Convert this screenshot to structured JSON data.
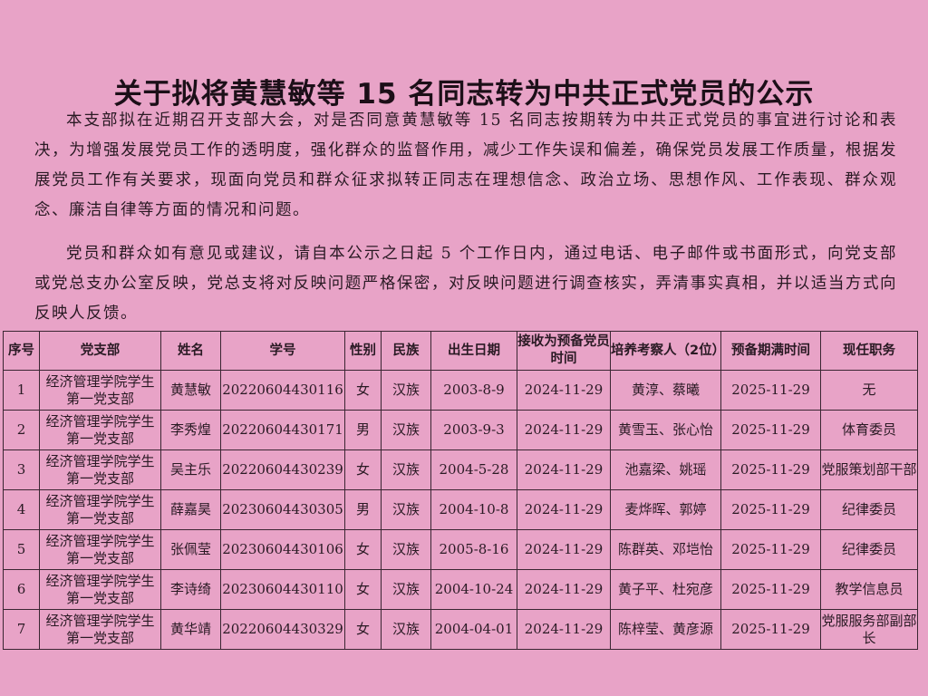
{
  "title": "关于拟将黄慧敏等 15 名同志转为中共正式党员的公示",
  "paragraphs": [
    "本支部拟在近期召开支部大会，对是否同意黄慧敏等 15 名同志按期转为中共正式党员的事宜进行讨论和表决，为增强发展党员工作的透明度，强化群众的监督作用，减少工作失误和偏差，确保党员发展工作质量，根据发展党员工作有关要求，现面向党员和群众征求拟转正同志在理想信念、政治立场、思想作风、工作表现、群众观念、廉洁自律等方面的情况和问题。",
    "党员和群众如有意见或建议，请自本公示之日起 5 个工作日内，通过电话、电子邮件或书面形式，向党支部或党总支办公室反映，党总支将对反映问题严格保密，对反映问题进行调查核实，弄清事实真相，并以适当方式向反映人反馈。"
  ],
  "table": {
    "headers": [
      "序号",
      "党支部",
      "姓名",
      "学号",
      "性别",
      "民族",
      "出生日期",
      "接收为预备党员时间",
      "培养考察人（2位）",
      "预备期满时间",
      "现任职务"
    ],
    "rows": [
      [
        "1",
        "经济管理学院学生第一党支部",
        "黄慧敏",
        "20220604430116",
        "女",
        "汉族",
        "2003-8-9",
        "2024-11-29",
        "黄淳、蔡曦",
        "2025-11-29",
        "无"
      ],
      [
        "2",
        "经济管理学院学生第一党支部",
        "李秀煌",
        "20220604430171",
        "男",
        "汉族",
        "2003-9-3",
        "2024-11-29",
        "黄雪玉、张心怡",
        "2025-11-29",
        "体育委员"
      ],
      [
        "3",
        "经济管理学院学生第一党支部",
        "吴主乐",
        "20220604430239",
        "女",
        "汉族",
        "2004-5-28",
        "2024-11-29",
        "池嘉梁、姚瑶",
        "2025-11-29",
        "党服策划部干部"
      ],
      [
        "4",
        "经济管理学院学生第一党支部",
        "薛嘉昊",
        "20230604430305",
        "男",
        "汉族",
        "2004-10-8",
        "2024-11-29",
        "麦烨晖、郭婷",
        "2025-11-29",
        "纪律委员"
      ],
      [
        "5",
        "经济管理学院学生第一党支部",
        "张佩莹",
        "20230604430106",
        "女",
        "汉族",
        "2005-8-16",
        "2024-11-29",
        "陈群英、邓垲怡",
        "2025-11-29",
        "纪律委员"
      ],
      [
        "6",
        "经济管理学院学生第一党支部",
        "李诗绮",
        "20230604430110",
        "女",
        "汉族",
        "2004-10-24",
        "2024-11-29",
        "黄子平、杜宛彦",
        "2025-11-29",
        "教学信息员"
      ],
      [
        "7",
        "经济管理学院学生第一党支部",
        "黄华靖",
        "20220604430329",
        "女",
        "汉族",
        "2004-04-01",
        "2024-11-29",
        "陈梓莹、黄彦源",
        "2025-11-29",
        "党服服务部副部长"
      ]
    ]
  }
}
